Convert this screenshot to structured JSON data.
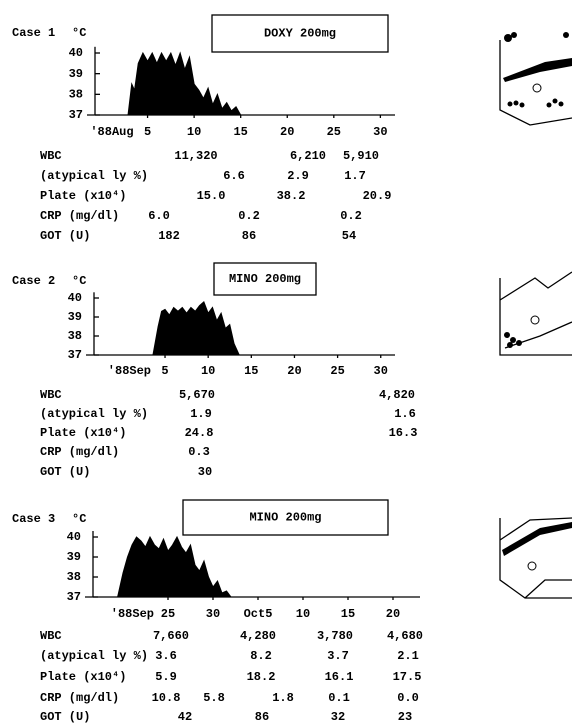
{
  "chart_data": [
    {
      "type": "area",
      "title": "Case 1",
      "ylabel": "°C",
      "annotation": "DOXY 200mg",
      "color": "#000000",
      "x_start_label": "'88Aug",
      "x": [
        2.9,
        3.3,
        3.6,
        4,
        4.5,
        5,
        5.5,
        6,
        6.5,
        7,
        7.5,
        8,
        8.5,
        9,
        9.5,
        10,
        10.5,
        11,
        11.5,
        12,
        12.5,
        13,
        13.5,
        14,
        14.5,
        15
      ],
      "values": [
        37,
        38.5,
        38.2,
        39.5,
        40,
        39.6,
        40,
        39.5,
        40,
        39.6,
        40,
        39.4,
        40,
        39.2,
        39.8,
        38.5,
        38.2,
        37.8,
        38.3,
        37.5,
        38,
        37.3,
        37.6,
        37.2,
        37.4,
        37
      ],
      "xlim": [
        0,
        32
      ],
      "xticks": [
        5,
        10,
        15,
        20,
        25,
        30
      ],
      "ylim": [
        37,
        40.3
      ],
      "yticks": [
        37,
        38,
        39,
        40
      ]
    },
    {
      "type": "area",
      "title": "Case 2",
      "ylabel": "°C",
      "annotation": "MINO 200mg",
      "color": "#000000",
      "x_start_label": "'88Sep",
      "x": [
        3.6,
        4.2,
        4.6,
        5,
        5.5,
        6,
        6.5,
        7,
        7.5,
        8,
        8.5,
        9,
        9.5,
        10,
        10.5,
        11,
        11.5,
        12,
        12.5,
        13,
        13.6
      ],
      "values": [
        37,
        38.5,
        39.3,
        39.4,
        39.1,
        39.5,
        39.3,
        39.5,
        39.2,
        39.5,
        39.3,
        39.6,
        39.8,
        39.2,
        39.5,
        38.8,
        39.2,
        38.4,
        38.6,
        37.6,
        37
      ],
      "xlim": [
        -3,
        32
      ],
      "xticks": [
        5,
        10,
        15,
        20,
        25,
        30
      ],
      "ylim": [
        37,
        40.3
      ],
      "yticks": [
        37,
        38,
        39,
        40
      ]
    },
    {
      "type": "area",
      "title": "Case 3",
      "ylabel": "°C",
      "annotation": "MINO 200mg",
      "color": "#000000",
      "x_start_label": "'88Sep",
      "x": [
        19.4,
        20,
        20.5,
        21,
        21.5,
        22,
        22.5,
        23,
        23.5,
        24,
        24.5,
        25,
        25.5,
        26,
        26.5,
        27,
        27.5,
        28,
        28.5,
        29,
        29.5,
        30,
        30.5,
        31,
        31.5,
        32
      ],
      "values": [
        37,
        38.2,
        39,
        39.6,
        40,
        39.8,
        39.5,
        40,
        39.6,
        39.4,
        39.9,
        39.3,
        39.6,
        40,
        39.5,
        39.2,
        39.6,
        38.6,
        38.3,
        38.8,
        38,
        37.5,
        37.8,
        37.2,
        37.3,
        37
      ],
      "xlim": [
        17,
        52
      ],
      "xticks": [
        25,
        30,
        {
          "value": 35,
          "label": "Oct5"
        },
        {
          "value": 40,
          "label": "10"
        },
        {
          "value": 45,
          "label": "15"
        },
        {
          "value": 50,
          "label": "20"
        }
      ],
      "ylim": [
        37,
        40.3
      ],
      "yticks": [
        37,
        38,
        39,
        40
      ]
    }
  ],
  "tables": [
    {
      "rows": [
        {
          "label": "WBC",
          "values": [
            "11,320",
            "6,210",
            "5,910"
          ]
        },
        {
          "label": "(atypical ly %)",
          "values": [
            "6.6",
            "2.9",
            "1.7"
          ]
        },
        {
          "label": "Plate (x10⁴)",
          "values": [
            "15.0",
            "38.2",
            "20.9"
          ]
        },
        {
          "label": "CRP (mg/dl)",
          "values": [
            "6.0",
            "0.2",
            "0.2"
          ]
        },
        {
          "label": "GOT (U)",
          "values": [
            "182",
            "86",
            "54"
          ]
        }
      ]
    },
    {
      "rows": [
        {
          "label": "WBC",
          "values": [
            "5,670",
            "4,820"
          ]
        },
        {
          "label": "(atypical ly %)",
          "values": [
            "1.9",
            "1.6"
          ]
        },
        {
          "label": "Plate (x10⁴)",
          "values": [
            "24.8",
            "16.3"
          ]
        },
        {
          "label": "CRP (mg/dl)",
          "values": [
            "0.3"
          ]
        },
        {
          "label": "GOT (U)",
          "values": [
            "30"
          ]
        }
      ]
    },
    {
      "rows": [
        {
          "label": "WBC",
          "values": [
            "7,660",
            "4,280",
            "3,780",
            "4,680"
          ]
        },
        {
          "label": "(atypical ly %)",
          "values": [
            "3.6",
            "8.2",
            "3.7",
            "2.1"
          ]
        },
        {
          "label": "Plate (x10⁴)",
          "values": [
            "5.9",
            "18.2",
            "16.1",
            "17.5"
          ]
        },
        {
          "label": "CRP (mg/dl)",
          "values": [
            "10.8",
            "5.8",
            "1.8",
            "0.1",
            "0.0"
          ]
        },
        {
          "label": "GOT (U)",
          "values": [
            "42",
            "86",
            "32",
            "23"
          ]
        }
      ]
    }
  ]
}
